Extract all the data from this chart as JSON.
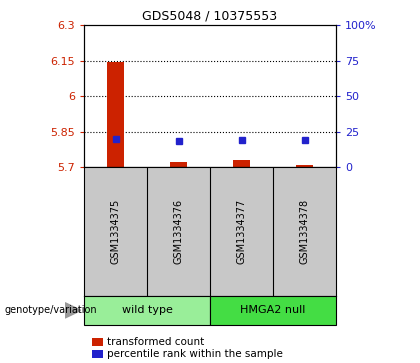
{
  "title": "GDS5048 / 10375553",
  "samples": [
    "GSM1334375",
    "GSM1334376",
    "GSM1334377",
    "GSM1334378"
  ],
  "transformed_counts": [
    6.143,
    5.721,
    5.73,
    5.71
  ],
  "percentile_ranks": [
    20,
    18,
    19,
    19
  ],
  "ylim_left": [
    5.7,
    6.3
  ],
  "ylim_right": [
    0,
    100
  ],
  "yticks_left": [
    5.7,
    5.85,
    6.0,
    6.15,
    6.3
  ],
  "yticks_right": [
    0,
    25,
    50,
    75,
    100
  ],
  "ytick_labels_left": [
    "5.7",
    "5.85",
    "6",
    "6.15",
    "6.3"
  ],
  "ytick_labels_right": [
    "0",
    "25",
    "50",
    "75",
    "100%"
  ],
  "hlines": [
    5.85,
    6.0,
    6.15
  ],
  "bar_color": "#cc2200",
  "dot_color": "#2222cc",
  "wild_type_color": "#99ee99",
  "hmga2_color": "#44dd44",
  "label_bg_color": "#c8c8c8",
  "legend_bar_label": "transformed count",
  "legend_dot_label": "percentile rank within the sample",
  "genotype_label": "genotype/variation",
  "title_fontsize": 9,
  "tick_fontsize": 8,
  "sample_fontsize": 7,
  "geno_fontsize": 8,
  "legend_fontsize": 7.5
}
